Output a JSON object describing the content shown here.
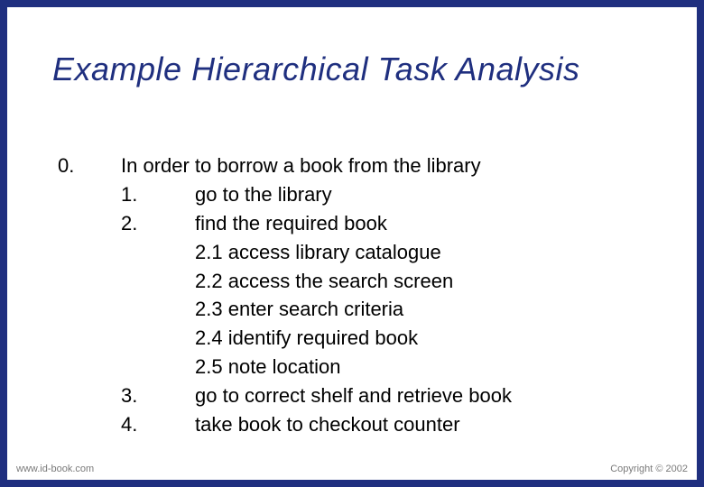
{
  "slide": {
    "title": "Example Hierarchical Task Analysis",
    "title_color": "#1f2f7f",
    "title_fontsize": 36,
    "body_fontsize": 22,
    "body_color": "#000000",
    "background_color": "#ffffff",
    "border_color": "#1f2f7f"
  },
  "task": {
    "root_number": "0.",
    "root_text": "In order to borrow a book from the library",
    "steps": [
      {
        "num": "1.",
        "text": "go to the library"
      },
      {
        "num": "2.",
        "text": "find the required book"
      }
    ],
    "substeps": [
      {
        "num": "2.1",
        "text": "access library catalogue"
      },
      {
        "num": "2.2",
        "text": "access the search screen"
      },
      {
        "num": "2.3",
        "text": "enter search criteria"
      },
      {
        "num": "2.4",
        "text": "identify required book"
      },
      {
        "num": "2.5",
        "text": "note location"
      }
    ],
    "steps_after": [
      {
        "num": "3.",
        "text": "go to correct shelf and retrieve book"
      },
      {
        "num": "4.",
        "text": "take book to checkout counter"
      }
    ]
  },
  "footer": {
    "left": "www.id-book.com",
    "right": "Copyright © 2002"
  }
}
